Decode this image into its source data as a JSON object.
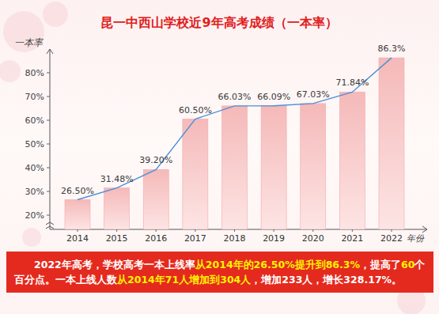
{
  "chart_data": {
    "type": "bar",
    "title": "昆一中西山学校近9年高考成绩（一本率）",
    "ylabel": "一本率",
    "xlabel": "年份",
    "categories": [
      "2014",
      "2015",
      "2016",
      "2017",
      "2018",
      "2019",
      "2020",
      "2021",
      "2022"
    ],
    "values": [
      26.5,
      31.48,
      39.2,
      60.5,
      66.03,
      66.09,
      67.03,
      71.84,
      86.3
    ],
    "value_labels": [
      "26.50%",
      "31.48%",
      "39.20%",
      "60.50%",
      "66.03%",
      "66.09%",
      "67.03%",
      "71.84%",
      "86.3%"
    ],
    "data_labels": true,
    "color": "#f5b9b9",
    "ylim": [
      14,
      90
    ],
    "yticks": [
      {
        "value": 20,
        "label": "20%"
      },
      {
        "value": 30,
        "label": "30%"
      },
      {
        "value": 40,
        "label": "40%"
      },
      {
        "value": 50,
        "label": "50%"
      },
      {
        "value": 60,
        "label": "60%"
      },
      {
        "value": 70,
        "label": "70%"
      },
      {
        "value": 80,
        "label": "80%"
      }
    ],
    "grid": false,
    "annotation": [
      "2022年高考，学校高考一本上线率",
      "从2014年的26.50%提升到86.3%",
      "，提高了",
      "60",
      "个百分点。一本上线人数",
      "从2014年71人增加到304人",
      "，增加233人，增长328.17%。"
    ]
  }
}
